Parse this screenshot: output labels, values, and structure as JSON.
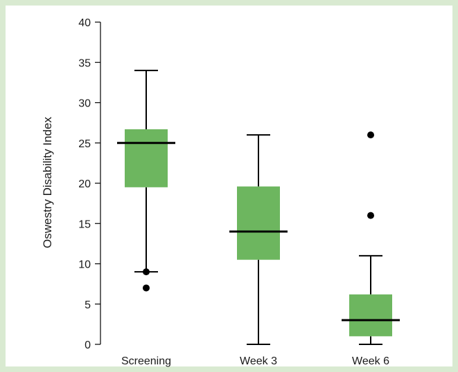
{
  "colors": {
    "background": "#d9ead1",
    "box_fill": "#6db65f",
    "ink": "#000000"
  },
  "chart_data": {
    "type": "box",
    "title": "",
    "xlabel": "",
    "ylabel": "Oswestry Disability Index",
    "ylim": [
      0,
      40
    ],
    "yticks": [
      0,
      5,
      10,
      15,
      20,
      25,
      30,
      35,
      40
    ],
    "grid": false,
    "categories": [
      "Screening",
      "Week 3",
      "Week 6"
    ],
    "boxes": [
      {
        "category": "Screening",
        "whisker_low": 9,
        "q1": 19.5,
        "median": 25,
        "q3": 26.7,
        "whisker_high": 34,
        "outliers": [
          7
        ]
      },
      {
        "category": "Week 3",
        "whisker_low": 0,
        "q1": 10.5,
        "median": 14,
        "q3": 19.6,
        "whisker_high": 26,
        "outliers": []
      },
      {
        "category": "Week 6",
        "whisker_low": 0,
        "q1": 1,
        "median": 3,
        "q3": 6.2,
        "whisker_high": 11,
        "outliers": [
          16,
          26
        ]
      }
    ]
  }
}
